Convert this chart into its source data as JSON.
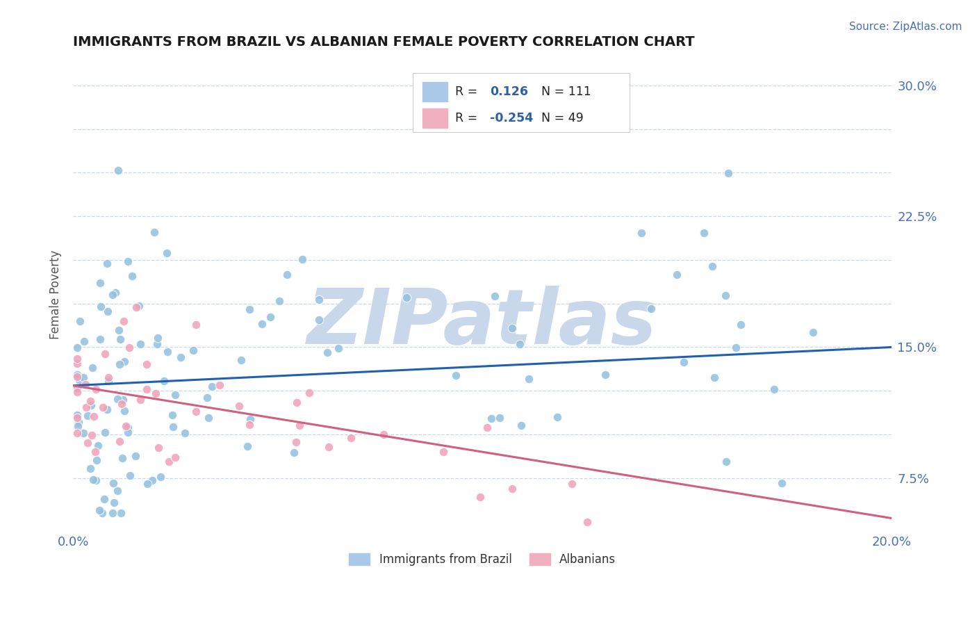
{
  "title": "IMMIGRANTS FROM BRAZIL VS ALBANIAN FEMALE POVERTY CORRELATION CHART",
  "source": "Source: ZipAtlas.com",
  "ylabel": "Female Poverty",
  "xlim": [
    0.0,
    0.2
  ],
  "ylim": [
    0.045,
    0.315
  ],
  "ytick_vals": [
    0.075,
    0.1,
    0.125,
    0.15,
    0.175,
    0.2,
    0.225,
    0.25,
    0.275,
    0.3
  ],
  "ytick_labels": [
    "7.5%",
    "",
    "",
    "15.0%",
    "",
    "",
    "22.5%",
    "",
    "",
    "30.0%"
  ],
  "xtick_vals": [
    0.0,
    0.05,
    0.1,
    0.15,
    0.2
  ],
  "xtick_labels": [
    "0.0%",
    "",
    "",
    "",
    "20.0%"
  ],
  "color_blue_scatter": "#92c0e0",
  "color_pink_scatter": "#f0a0b8",
  "color_blue_line": "#2060b0",
  "color_pink_line": "#d06080",
  "color_tick": "#4a70b0",
  "color_source": "#4a70b0",
  "color_ylabel": "#555555",
  "watermark": "ZIPatlas",
  "watermark_color": "#c8d8ea",
  "background_color": "#ffffff",
  "grid_color": "#c8d8e8",
  "brazil_trend_x": [
    0.0,
    0.2
  ],
  "brazil_trend_y": [
    0.128,
    0.15
  ],
  "albanian_trend_x": [
    0.0,
    0.2
  ],
  "albanian_trend_y": [
    0.128,
    0.052
  ],
  "legend_box_color_blue": "#aac8e8",
  "legend_box_color_pink": "#f0b0c0",
  "legend_r_color": "#3060a0",
  "legend_n_color": "#222222"
}
